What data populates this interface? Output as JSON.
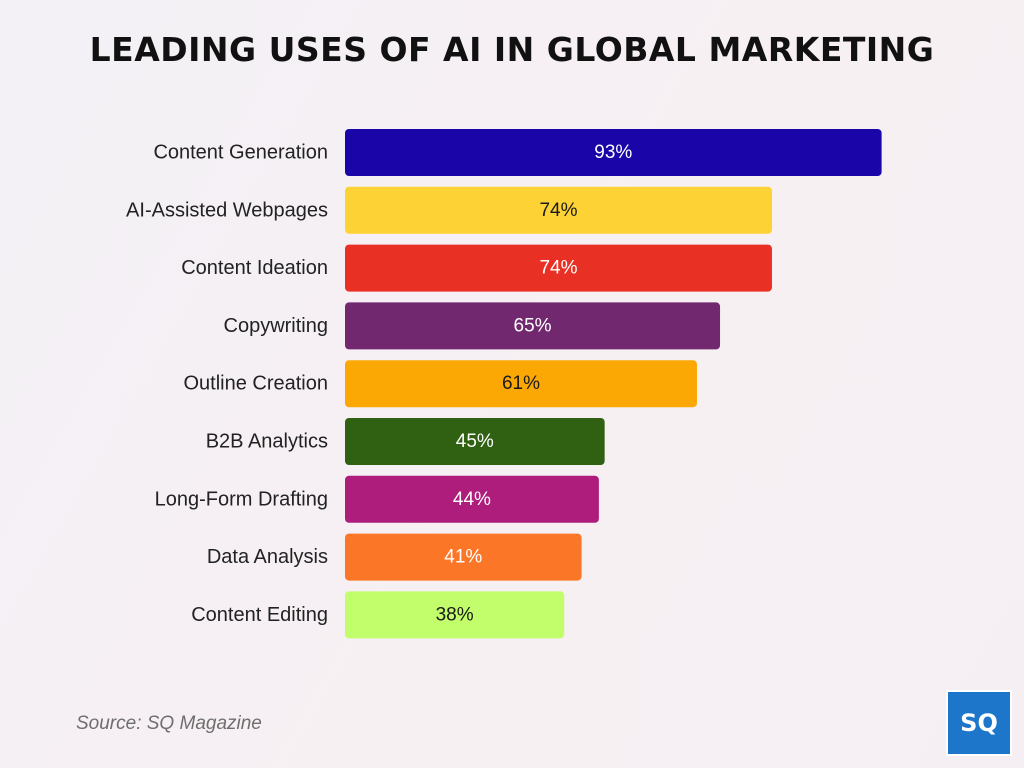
{
  "title": "LEADING USES OF AI IN GLOBAL MARKETING",
  "source": "Source: SQ Magazine",
  "logo": {
    "text": "SQ",
    "color": "#1d76c9"
  },
  "chart_data": {
    "type": "bar",
    "orientation": "horizontal",
    "title": "LEADING USES OF AI IN GLOBAL MARKETING",
    "xlabel": "",
    "ylabel": "",
    "unit": "%",
    "xlim": [
      0,
      100
    ],
    "grid": false,
    "categories": [
      "Content Generation",
      "AI-Assisted Webpages",
      "Content Ideation",
      "Copywriting",
      "Outline Creation",
      "B2B Analytics",
      "Long-Form Drafting",
      "Data Analysis",
      "Content Editing"
    ],
    "values": [
      93,
      74,
      74,
      65,
      61,
      45,
      44,
      41,
      38
    ],
    "value_labels": [
      "93%",
      "74%",
      "74%",
      "65%",
      "61%",
      "45%",
      "44%",
      "41%",
      "38%"
    ],
    "colors": [
      "#1a06a8",
      "#fdd235",
      "#e93025",
      "#72286f",
      "#fba704",
      "#306112",
      "#ae1d7c",
      "#fb7627",
      "#c2fd6b"
    ],
    "label_colors": [
      "#ffffff",
      "#1a1a1a",
      "#ffffff",
      "#ffffff",
      "#1a1a1a",
      "#ffffff",
      "#ffffff",
      "#ffffff",
      "#1a1a1a"
    ]
  }
}
